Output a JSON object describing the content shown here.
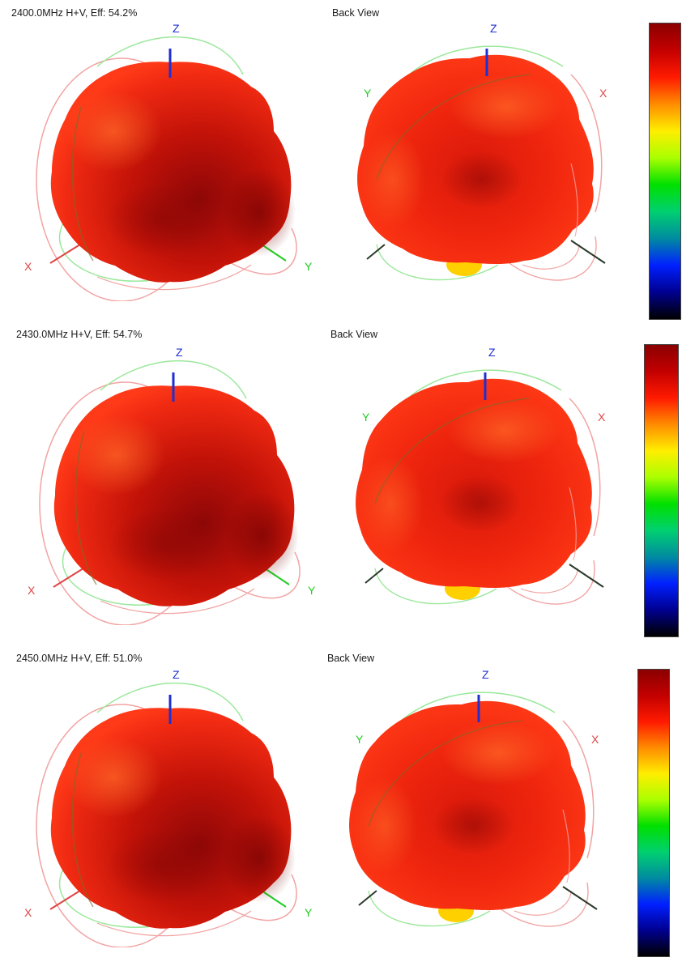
{
  "rows": [
    {
      "front_title": "2400.0MHz H+V, Eff: 54.2%",
      "back_title": "Back View"
    },
    {
      "front_title": "2430.0MHz H+V, Eff: 54.7%",
      "back_title": "Back View"
    },
    {
      "front_title": "2450.0MHz H+V, Eff: 51.0%",
      "back_title": "Back View"
    }
  ],
  "axes": {
    "x": "X",
    "y": "Y",
    "z": "Z"
  },
  "colors": {
    "z_axis": "#1f2fd0",
    "x_axis": "#e04545",
    "y_axis": "#22cc22",
    "dark_axis": "#2a3a2a",
    "pattern_light": "#ff3a1a",
    "pattern_mid": "#e81e0c",
    "pattern_dark": "#8a0606",
    "pattern_hot": "#ffd000",
    "ring_green": "#9be89b",
    "ring_red": "#f2a3a3"
  },
  "colorbar": [
    "#8b0000",
    "#c30000",
    "#ff1a00",
    "#ff8c00",
    "#ffee00",
    "#aaff00",
    "#00e000",
    "#00d070",
    "#008ba0",
    "#0020ff",
    "#000090",
    "#000000"
  ]
}
